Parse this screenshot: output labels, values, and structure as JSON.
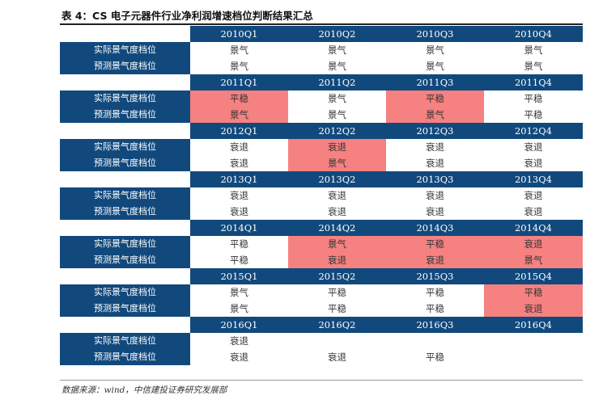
{
  "title": "表 4：CS 电子元器件行业净利润增速档位判断结果汇总",
  "row_labels": {
    "actual": "实际景气度档位",
    "forecast": "预测景气度档位"
  },
  "colors": {
    "header_bg": "#11497d",
    "highlight": "#f68181"
  },
  "years": [
    {
      "quarters": [
        "2010Q1",
        "2010Q2",
        "2010Q3",
        "2010Q4"
      ],
      "actual": [
        "景气",
        "景气",
        "景气",
        "景气"
      ],
      "forecast": [
        "景气",
        "景气",
        "景气",
        "景气"
      ],
      "highlight": [
        false,
        false,
        false,
        false
      ]
    },
    {
      "quarters": [
        "2011Q1",
        "2011Q2",
        "2011Q3",
        "2011Q4"
      ],
      "actual": [
        "平稳",
        "景气",
        "平稳",
        "平稳"
      ],
      "forecast": [
        "景气",
        "景气",
        "景气",
        "平稳"
      ],
      "highlight": [
        true,
        false,
        true,
        false
      ]
    },
    {
      "quarters": [
        "2012Q1",
        "2012Q2",
        "2012Q3",
        "2012Q4"
      ],
      "actual": [
        "衰退",
        "衰退",
        "衰退",
        "衰退"
      ],
      "forecast": [
        "衰退",
        "景气",
        "衰退",
        "衰退"
      ],
      "highlight": [
        false,
        true,
        false,
        false
      ]
    },
    {
      "quarters": [
        "2013Q1",
        "2013Q2",
        "2013Q3",
        "2013Q4"
      ],
      "actual": [
        "衰退",
        "衰退",
        "衰退",
        "衰退"
      ],
      "forecast": [
        "衰退",
        "衰退",
        "衰退",
        "衰退"
      ],
      "highlight": [
        false,
        false,
        false,
        false
      ]
    },
    {
      "quarters": [
        "2014Q1",
        "2014Q2",
        "2014Q3",
        "2014Q4"
      ],
      "actual": [
        "平稳",
        "景气",
        "平稳",
        "衰退"
      ],
      "forecast": [
        "平稳",
        "衰退",
        "衰退",
        "景气"
      ],
      "highlight": [
        false,
        true,
        true,
        true
      ]
    },
    {
      "quarters": [
        "2015Q1",
        "2015Q2",
        "2015Q3",
        "2015Q4"
      ],
      "actual": [
        "景气",
        "平稳",
        "平稳",
        "平稳"
      ],
      "forecast": [
        "景气",
        "平稳",
        "平稳",
        "衰退"
      ],
      "highlight": [
        false,
        false,
        false,
        true
      ]
    },
    {
      "quarters": [
        "2016Q1",
        "2016Q2",
        "2016Q3",
        "2016Q4"
      ],
      "actual": [
        "衰退",
        "",
        "",
        ""
      ],
      "forecast": [
        "衰退",
        "衰退",
        "平稳",
        ""
      ],
      "highlight": [
        false,
        false,
        false,
        false
      ]
    }
  ],
  "source_note": "数据来源：wind，中信建投证券研究发展部"
}
